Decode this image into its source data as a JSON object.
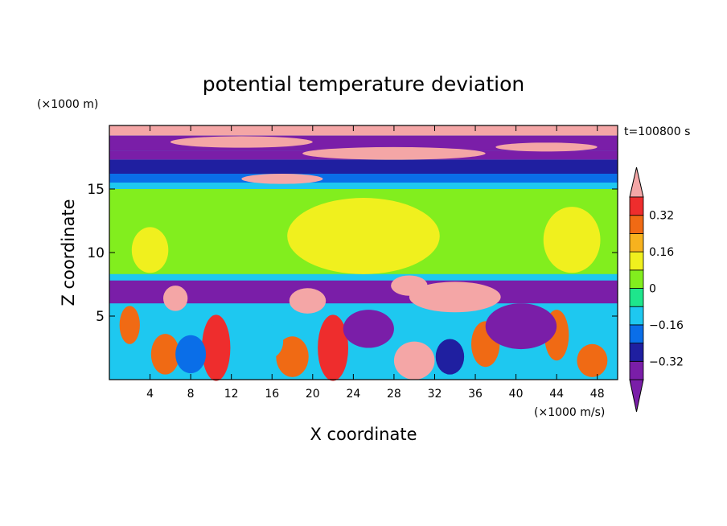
{
  "chart_data": {
    "type": "heatmap",
    "title": "potential temperature deviation",
    "xlabel": "X coordinate",
    "ylabel": "Z coordinate",
    "x_unit": "(×1000 m/s)",
    "y_unit": "(×1000 m)",
    "time_label": "t=100800 s",
    "xlim": [
      0,
      50
    ],
    "ylim": [
      0,
      20
    ],
    "x_ticks": [
      4,
      8,
      12,
      16,
      20,
      24,
      28,
      32,
      36,
      40,
      44,
      48
    ],
    "y_ticks": [
      5,
      10,
      15
    ],
    "grid": false,
    "colorbar": {
      "placement": "right",
      "levels": [
        -0.4,
        -0.32,
        -0.24,
        -0.16,
        -0.08,
        0,
        0.08,
        0.16,
        0.24,
        0.32,
        0.4
      ],
      "colors": [
        "#7a1ea8",
        "#1f1fa0",
        "#0a6ee8",
        "#1ec8f0",
        "#1ee68c",
        "#82ee1e",
        "#f0f01e",
        "#f7b21e",
        "#f06a14",
        "#ee2d2d"
      ],
      "under_color": "#7a1ea8",
      "over_color": "#f4a6a6",
      "tick_labels": [
        "0.32",
        "0.16",
        "0",
        "−0.16",
        "−0.32"
      ],
      "tick_values": [
        0.32,
        0.16,
        0,
        -0.16,
        -0.32
      ]
    },
    "bands": [
      {
        "z": [
          19.2,
          20
        ],
        "value": 0.5
      },
      {
        "z": [
          18.0,
          19.2
        ],
        "value": -0.45
      },
      {
        "z": [
          17.3,
          18.0
        ],
        "value": -0.35
      },
      {
        "z": [
          16.2,
          17.3
        ],
        "value": -0.28
      },
      {
        "z": [
          15.5,
          16.2
        ],
        "value": -0.2
      },
      {
        "z": [
          15.0,
          15.5
        ],
        "value": -0.12
      },
      {
        "z": [
          8.3,
          15.0
        ],
        "value": 0.04
      },
      {
        "z": [
          7.8,
          8.3
        ],
        "value": -0.12
      },
      {
        "z": [
          6.0,
          7.8
        ],
        "value": -0.45
      }
    ],
    "blobs": [
      {
        "x": 25,
        "z": 11.3,
        "rx": 7.5,
        "rz": 3.0,
        "value": 0.12
      },
      {
        "x": 45.5,
        "z": 11.0,
        "rx": 2.8,
        "rz": 2.6,
        "value": 0.12
      },
      {
        "x": 4,
        "z": 10.2,
        "rx": 1.8,
        "rz": 1.8,
        "value": 0.12
      },
      {
        "x": 13,
        "z": 18.7,
        "rx": 7,
        "rz": 0.45,
        "value": 0.5
      },
      {
        "x": 28,
        "z": 17.8,
        "rx": 9,
        "rz": 0.5,
        "value": 0.5
      },
      {
        "x": 17,
        "z": 15.8,
        "rx": 4,
        "rz": 0.4,
        "value": 0.5
      },
      {
        "x": 43,
        "z": 18.3,
        "rx": 5,
        "rz": 0.35,
        "value": 0.5
      },
      {
        "x": 19.5,
        "z": 6.2,
        "rx": 1.8,
        "rz": 1.0,
        "value": 0.5
      },
      {
        "x": 34,
        "z": 6.5,
        "rx": 4.5,
        "rz": 1.2,
        "value": 0.5
      },
      {
        "x": 29.5,
        "z": 7.4,
        "rx": 1.8,
        "rz": 0.8,
        "value": 0.5
      },
      {
        "x": 6.5,
        "z": 6.4,
        "rx": 1.2,
        "rz": 1.0,
        "value": 0.5
      },
      {
        "x": 2,
        "z": 4.3,
        "rx": 1.0,
        "rz": 1.5,
        "value": 0.24
      },
      {
        "x": 5.5,
        "z": 2.0,
        "rx": 1.4,
        "rz": 1.6,
        "value": 0.24
      },
      {
        "x": 10.5,
        "z": 2.5,
        "rx": 1.4,
        "rz": 2.6,
        "value": 0.32
      },
      {
        "x": 18.0,
        "z": 1.8,
        "rx": 1.6,
        "rz": 1.6,
        "value": 0.24
      },
      {
        "x": 22.0,
        "z": 2.5,
        "rx": 1.5,
        "rz": 2.6,
        "value": 0.32
      },
      {
        "x": 30.0,
        "z": 1.5,
        "rx": 2.0,
        "rz": 1.5,
        "value": 0.4
      },
      {
        "x": 37.0,
        "z": 2.8,
        "rx": 1.4,
        "rz": 1.8,
        "value": 0.24
      },
      {
        "x": 44.0,
        "z": 3.5,
        "rx": 1.2,
        "rz": 2.0,
        "value": 0.24
      },
      {
        "x": 47.5,
        "z": 1.5,
        "rx": 1.5,
        "rz": 1.3,
        "value": 0.24
      },
      {
        "x": 15.5,
        "z": 3.0,
        "rx": 1.6,
        "rz": 1.4,
        "value": -0.12
      },
      {
        "x": 25.5,
        "z": 4.0,
        "rx": 2.5,
        "rz": 1.5,
        "value": -0.45
      },
      {
        "x": 40.5,
        "z": 4.2,
        "rx": 3.5,
        "rz": 1.8,
        "value": -0.45
      },
      {
        "x": 8.0,
        "z": 2.0,
        "rx": 1.5,
        "rz": 1.5,
        "value": -0.2
      },
      {
        "x": 33.5,
        "z": 1.8,
        "rx": 1.4,
        "rz": 1.4,
        "value": -0.28
      }
    ]
  }
}
